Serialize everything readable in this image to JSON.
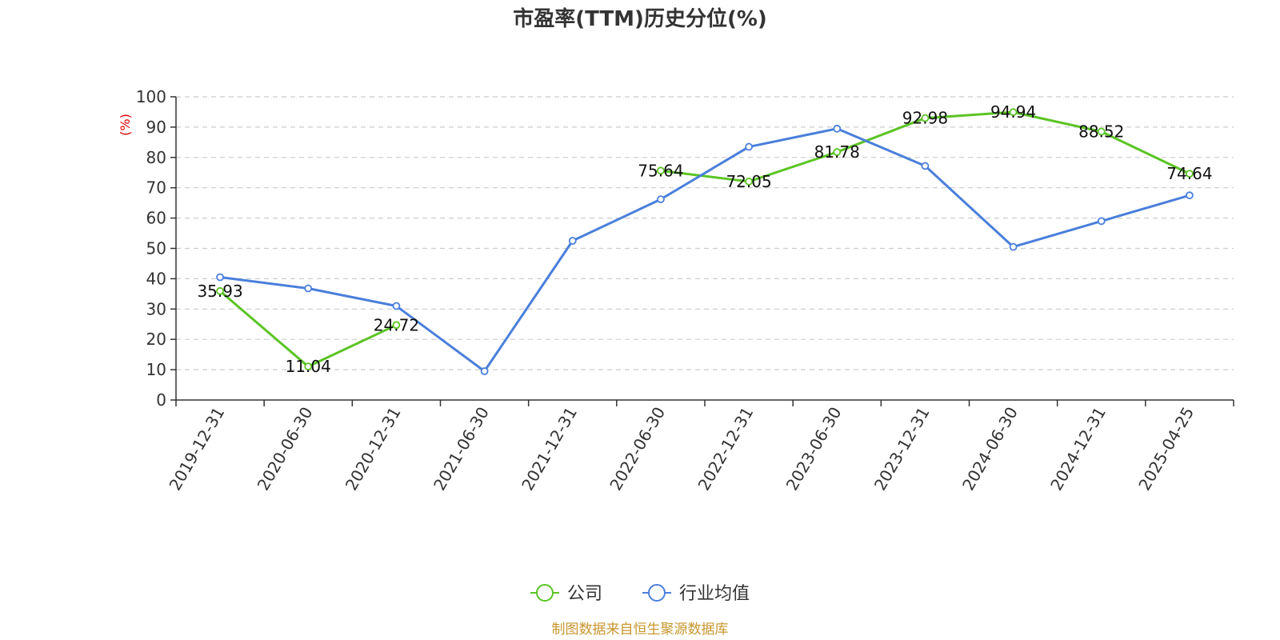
{
  "chart_data": {
    "type": "line",
    "title": "市盈率(TTM)历史分位(%)",
    "ylabel": "(%)",
    "xlabel": "",
    "ylim": [
      0,
      100
    ],
    "yticks": [
      0,
      10,
      20,
      30,
      40,
      50,
      60,
      70,
      80,
      90,
      100
    ],
    "grid": true,
    "legend_position": "bottom",
    "categories": [
      "2019-12-31",
      "2020-06-30",
      "2020-12-31",
      "2021-06-30",
      "2021-12-31",
      "2022-06-30",
      "2022-12-31",
      "2023-06-30",
      "2023-12-31",
      "2024-06-30",
      "2024-12-31",
      "2025-04-25"
    ],
    "series": [
      {
        "name": "公司",
        "color": "#5bc424",
        "values": [
          35.93,
          11.04,
          24.72,
          null,
          null,
          75.64,
          72.05,
          81.78,
          92.98,
          94.94,
          88.52,
          74.64
        ],
        "labels": [
          "35.93",
          "11.04",
          "24.72",
          "",
          "",
          "75.64",
          "72.05",
          "81.78",
          "92.98",
          "94.94",
          "88.52",
          "74.64"
        ]
      },
      {
        "name": "行业均值",
        "color": "#4a7fdb",
        "values": [
          40.5,
          36.8,
          31.0,
          9.5,
          52.5,
          66.2,
          83.5,
          89.5,
          77.2,
          50.5,
          59.0,
          67.5
        ]
      }
    ],
    "source": "制图数据来自恒生聚源数据库"
  }
}
